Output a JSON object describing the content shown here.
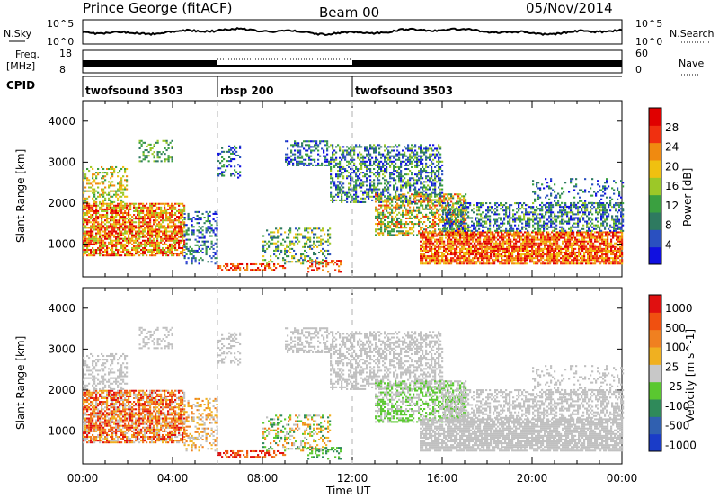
{
  "header": {
    "station": "Prince George (fitACF)",
    "beam": "Beam 00",
    "date": "05/Nov/2014"
  },
  "status_panels": {
    "nsky_label": "N.Sky",
    "nsky_ticks": [
      "10^5",
      "10^0"
    ],
    "nsearch_label": "N.Search",
    "nsearch_ticks": [
      "10^5",
      "10^0"
    ],
    "freq_label_line1": "Freq.",
    "freq_label_line2": "[MHz]",
    "freq_ticks": [
      "18",
      "8"
    ],
    "nave_label": "Nave",
    "nave_ticks": [
      "60",
      "0"
    ],
    "cpid_label": "CPID",
    "cpid_segments": [
      {
        "label": "twofsound 3503",
        "start_hour": 0,
        "end_hour": 6
      },
      {
        "label": "rbsp 200",
        "start_hour": 6,
        "end_hour": 12
      },
      {
        "label": "twofsound 3503",
        "start_hour": 12,
        "end_hour": 24
      }
    ]
  },
  "chart_data": [
    {
      "type": "heatmap",
      "title": "",
      "xlabel": "Time UT",
      "ylabel": "Slant Range [km]",
      "xlim_hours": [
        0,
        24
      ],
      "ylim": [
        200,
        4500
      ],
      "xticks": [
        "00:00",
        "04:00",
        "08:00",
        "12:00",
        "16:00",
        "20:00",
        "00:00"
      ],
      "yticks": [
        1000,
        2000,
        3000,
        4000
      ],
      "colorbar": {
        "label": "Power [dB]",
        "ticks": [
          "4",
          "8",
          "12",
          "16",
          "20",
          "24",
          "28"
        ],
        "range": [
          0,
          30
        ],
        "colors": [
          "#1010e0",
          "#2a50c0",
          "#2e7a60",
          "#3aa040",
          "#9cc828",
          "#f0c010",
          "#f08a10",
          "#f03010",
          "#e00000"
        ]
      }
    },
    {
      "type": "heatmap",
      "title": "",
      "xlabel": "Time UT",
      "ylabel": "Slant Range [km]",
      "xlim_hours": [
        0,
        24
      ],
      "ylim": [
        200,
        4500
      ],
      "xticks": [
        "00:00",
        "04:00",
        "08:00",
        "12:00",
        "16:00",
        "20:00",
        "00:00"
      ],
      "yticks": [
        1000,
        2000,
        3000,
        4000
      ],
      "colorbar": {
        "label": "Velocity [m s^-1]",
        "ticks": [
          "1000",
          "500",
          "100",
          "25",
          "-25",
          "-100",
          "-500",
          "-1000"
        ],
        "range": [
          -1000,
          1000
        ],
        "colors": [
          "#1a3cc8",
          "#3060b0",
          "#2f8a5a",
          "#5ac830",
          "#c8c8c8",
          "#f0b020",
          "#f08020",
          "#f05010",
          "#e01010"
        ]
      }
    }
  ],
  "colors": {
    "ground_scatter": "#c0c0c0",
    "axis": "#000000",
    "marker_line": "#b0b0b0"
  }
}
